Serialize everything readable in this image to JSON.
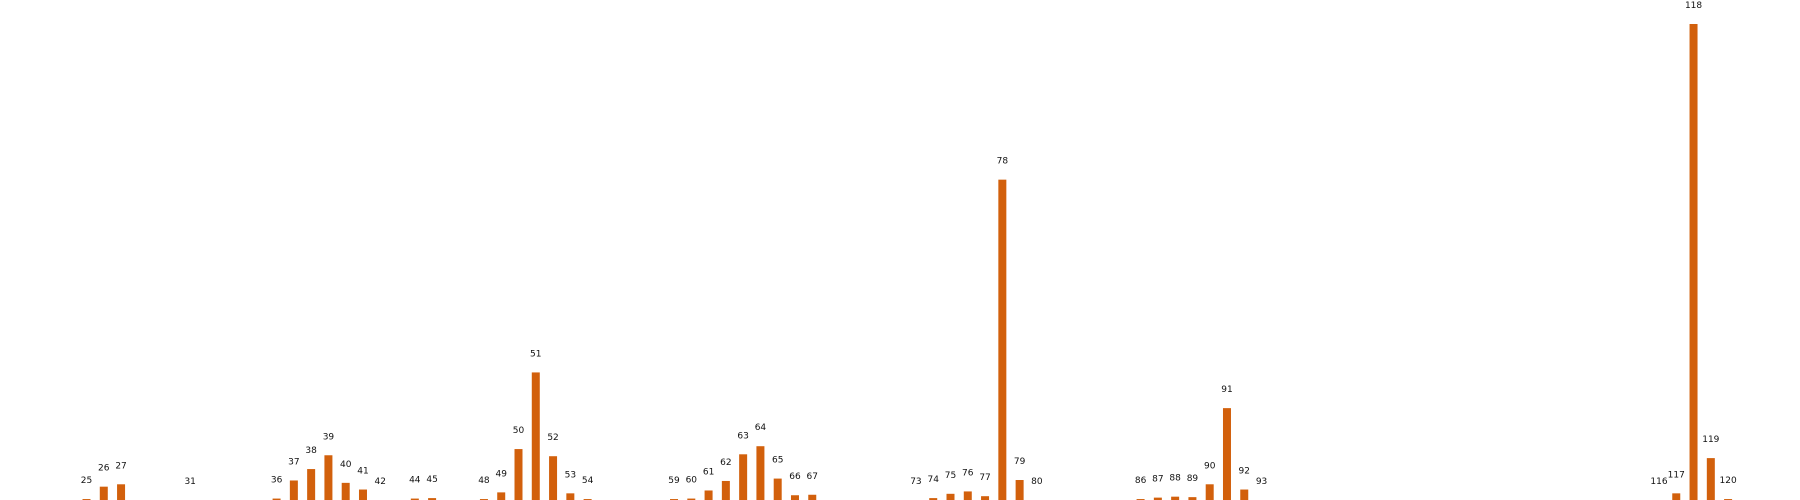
{
  "chart_data": {
    "type": "bar",
    "title": "",
    "xlabel": "",
    "ylabel": "",
    "grid": false,
    "legend": "none",
    "bar_color": "#d2600c",
    "ylim": [
      0,
      1.0
    ],
    "categories": [
      "25",
      "26",
      "27",
      "31",
      "36",
      "37",
      "38",
      "39",
      "40",
      "41",
      "42",
      "44",
      "45",
      "48",
      "49",
      "50",
      "51",
      "52",
      "53",
      "54",
      "59",
      "60",
      "61",
      "62",
      "63",
      "64",
      "65",
      "66",
      "67",
      "73",
      "74",
      "75",
      "76",
      "77",
      "78",
      "79",
      "80",
      "86",
      "87",
      "88",
      "89",
      "90",
      "91",
      "92",
      "93",
      "116",
      "117",
      "118",
      "119",
      "120"
    ],
    "values": [
      0.002,
      0.028,
      0.033,
      0.0,
      0.003,
      0.041,
      0.065,
      0.094,
      0.036,
      0.022,
      0.0,
      0.003,
      0.004,
      0.002,
      0.016,
      0.107,
      0.268,
      0.092,
      0.014,
      0.002,
      0.002,
      0.003,
      0.02,
      0.04,
      0.096,
      0.113,
      0.045,
      0.01,
      0.011,
      0.0,
      0.004,
      0.013,
      0.018,
      0.008,
      0.673,
      0.042,
      0.0,
      0.002,
      0.005,
      0.007,
      0.006,
      0.033,
      0.193,
      0.022,
      0.0,
      0.0,
      0.014,
      1.0,
      0.088,
      0.002
    ]
  }
}
